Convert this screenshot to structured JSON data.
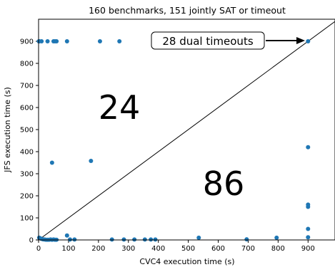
{
  "chart_data": {
    "type": "scatter",
    "title": "160 benchmarks, 151 jointly SAT or timeout",
    "xlabel": "CVC4 execution time (s)",
    "ylabel": "JFS execution time (s)",
    "xlim": [
      0,
      990
    ],
    "ylim": [
      0,
      1000
    ],
    "xticks": [
      0,
      100,
      200,
      300,
      400,
      500,
      600,
      700,
      800,
      900
    ],
    "yticks": [
      0,
      100,
      200,
      300,
      400,
      500,
      600,
      700,
      800,
      900
    ],
    "diagonal": "y = x",
    "grid": false,
    "marker_color": "#1f77b4",
    "series": [
      {
        "points": [
          [
            1,
            900
          ],
          [
            3,
            900
          ],
          [
            10,
            900
          ],
          [
            30,
            900
          ],
          [
            50,
            900
          ],
          [
            55,
            900
          ],
          [
            60,
            900
          ],
          [
            95,
            900
          ],
          [
            205,
            900
          ],
          [
            270,
            900
          ],
          [
            900,
            900
          ],
          [
            45,
            350
          ],
          [
            175,
            358
          ],
          [
            2,
            10
          ],
          [
            5,
            8
          ],
          [
            10,
            5
          ],
          [
            15,
            3
          ],
          [
            20,
            2
          ],
          [
            25,
            1
          ],
          [
            30,
            1
          ],
          [
            35,
            1
          ],
          [
            40,
            2
          ],
          [
            45,
            1
          ],
          [
            50,
            2
          ],
          [
            55,
            1
          ],
          [
            60,
            1
          ],
          [
            95,
            20
          ],
          [
            105,
            2
          ],
          [
            120,
            2
          ],
          [
            245,
            2
          ],
          [
            285,
            2
          ],
          [
            320,
            2
          ],
          [
            355,
            2
          ],
          [
            375,
            2
          ],
          [
            390,
            2
          ],
          [
            535,
            10
          ],
          [
            695,
            3
          ],
          [
            795,
            10
          ],
          [
            900,
            420
          ],
          [
            900,
            160
          ],
          [
            900,
            150
          ],
          [
            900,
            50
          ],
          [
            900,
            12
          ]
        ]
      }
    ],
    "annotations": [
      {
        "text": "24",
        "x": 140,
        "y": 555
      },
      {
        "text": "86",
        "x": 470,
        "y": 240
      }
    ],
    "callout": {
      "text": "28 dual timeouts",
      "target": [
        900,
        900
      ]
    }
  }
}
